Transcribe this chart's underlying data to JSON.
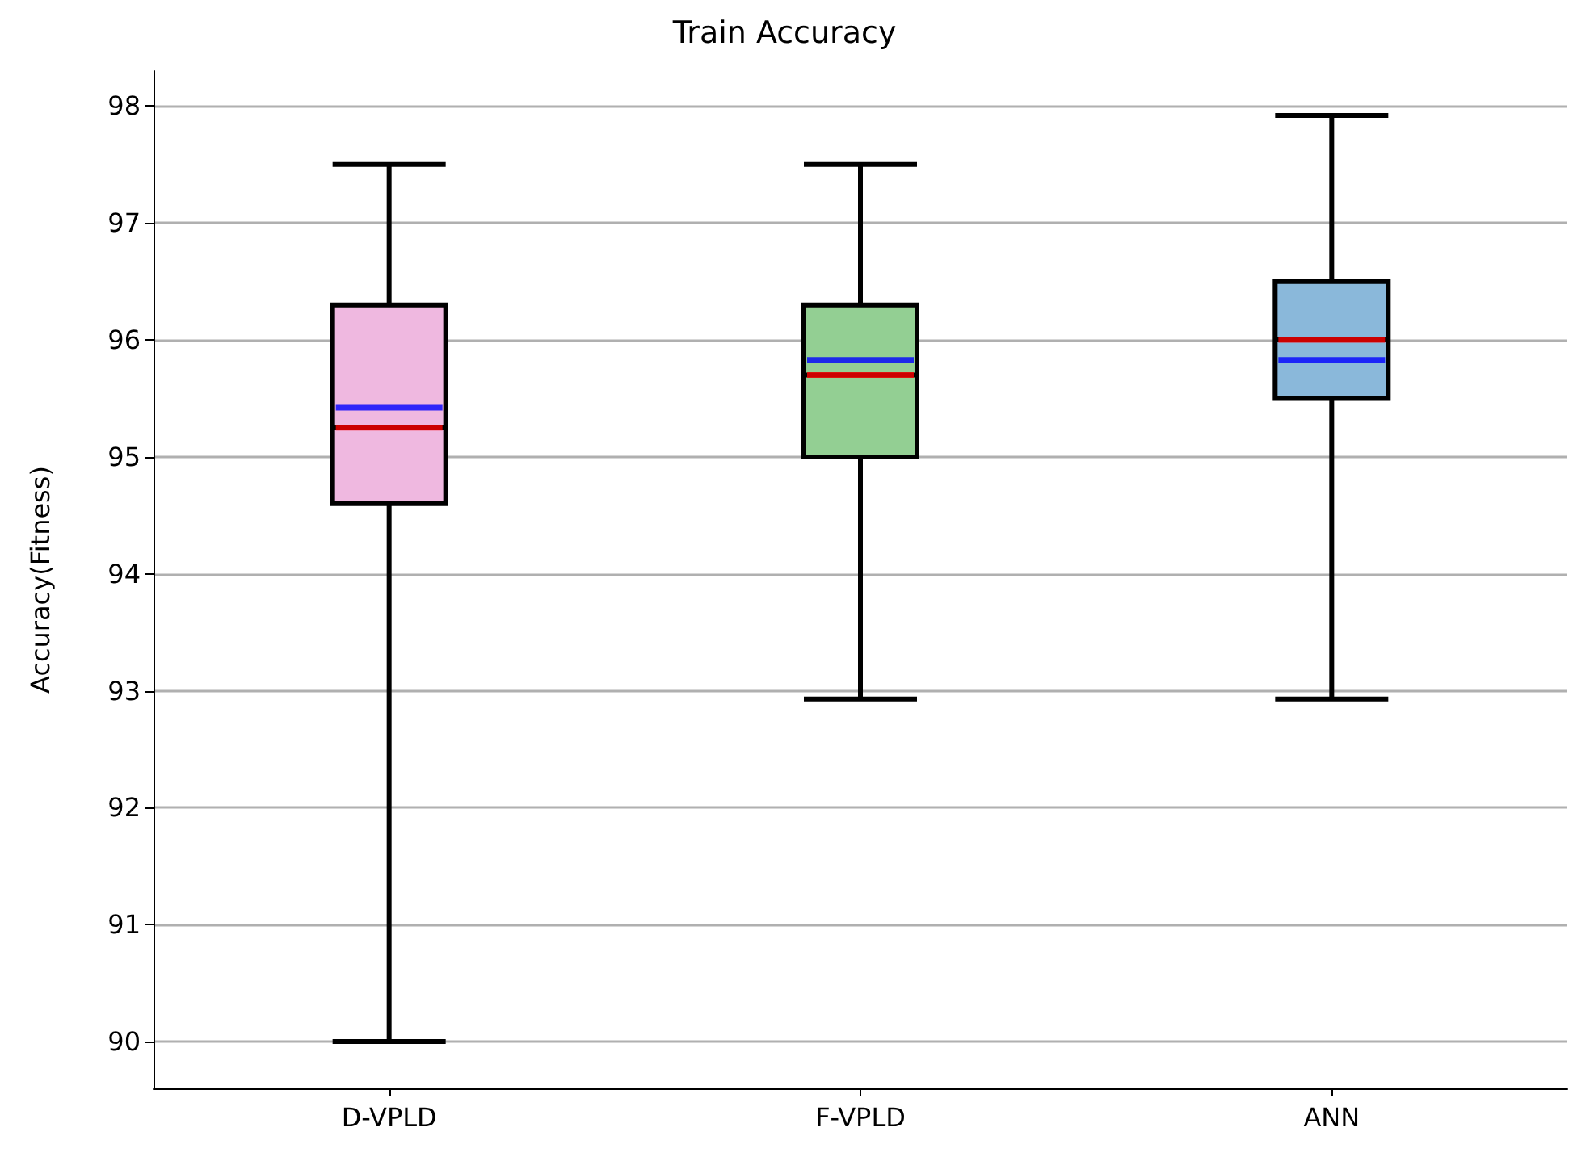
{
  "chart_data": {
    "type": "box",
    "title": "Train Accuracy",
    "ylabel": "Accuracy(Fitness)",
    "categories": [
      "D-VPLD",
      "F-VPLD",
      "ANN"
    ],
    "boxes": [
      {
        "low": 90.0,
        "q1": 94.6,
        "median": 95.25,
        "q3": 96.3,
        "mean": 95.42,
        "high": 97.5
      },
      {
        "low": 92.93,
        "q1": 95.0,
        "median": 95.7,
        "q3": 96.3,
        "mean": 95.83,
        "high": 97.5
      },
      {
        "low": 92.93,
        "q1": 95.5,
        "median": 96.0,
        "q3": 96.5,
        "mean": 95.83,
        "high": 97.92
      }
    ],
    "colors": [
      "#efb8e0",
      "#93cf93",
      "#8ab8da"
    ],
    "ylim": [
      89.6,
      98.3
    ],
    "yticks": [
      90,
      91,
      92,
      93,
      94,
      95,
      96,
      97,
      98
    ],
    "grid": "y"
  }
}
